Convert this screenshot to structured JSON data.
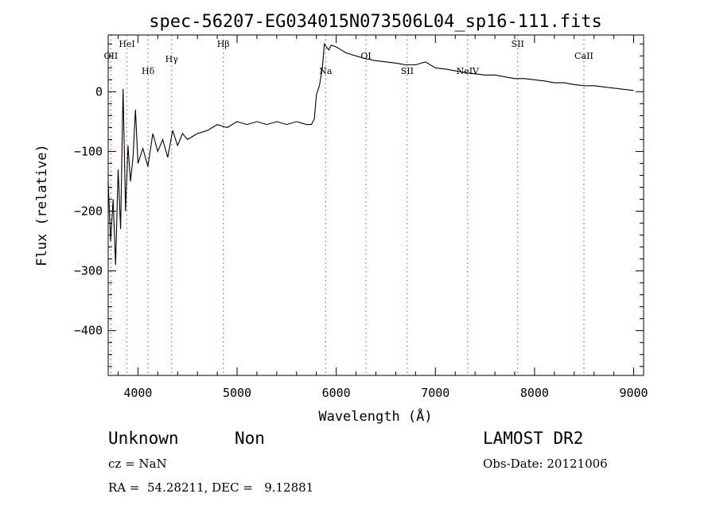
{
  "chart_data": {
    "type": "line",
    "title": "spec-56207-EG034015N073506L04_sp16-111.fits",
    "xlabel": "Wavelength (Å)",
    "ylabel": "Flux (relative)",
    "xlim": [
      3700,
      9100
    ],
    "ylim": [
      -475,
      95
    ],
    "x_ticks": [
      4000,
      5000,
      6000,
      7000,
      8000,
      9000
    ],
    "y_ticks": [
      0,
      -100,
      -200,
      -300,
      -400
    ],
    "grid": false,
    "series": [
      {
        "x": [
          3700,
          3725,
          3750,
          3775,
          3800,
          3825,
          3850,
          3875,
          3900,
          3925,
          3950,
          3975,
          4000,
          4050,
          4100,
          4150,
          4200,
          4250,
          4300,
          4350,
          4400,
          4450,
          4500,
          4600,
          4700,
          4800,
          4900,
          5000,
          5100,
          5200,
          5300,
          5400,
          5500,
          5600,
          5700,
          5750,
          5780,
          5800,
          5830,
          5860,
          5880,
          5900,
          5925,
          5950,
          6000,
          6050,
          6100,
          6200,
          6300,
          6400,
          6500,
          6600,
          6700,
          6800,
          6900,
          7000,
          7100,
          7200,
          7300,
          7400,
          7500,
          7600,
          7700,
          7800,
          7900,
          8000,
          8100,
          8200,
          8300,
          8400,
          8500,
          8600,
          8700,
          8800,
          8900,
          9000
        ],
        "y": [
          -150,
          -250,
          -180,
          -290,
          -130,
          -230,
          5,
          -200,
          -90,
          -150,
          -110,
          -30,
          -120,
          -95,
          -125,
          -70,
          -100,
          -80,
          -110,
          -65,
          -90,
          -70,
          -80,
          -70,
          -65,
          -55,
          -60,
          -50,
          -55,
          -50,
          -55,
          -50,
          -55,
          -50,
          -55,
          -55,
          -45,
          -5,
          10,
          40,
          80,
          75,
          70,
          78,
          75,
          70,
          65,
          60,
          55,
          52,
          50,
          48,
          45,
          45,
          50,
          40,
          38,
          35,
          32,
          30,
          28,
          28,
          25,
          22,
          22,
          20,
          18,
          15,
          15,
          12,
          10,
          10,
          8,
          6,
          4,
          2
        ]
      }
    ],
    "lines": [
      {
        "label": "OII",
        "x": 3727,
        "label_y": 55
      },
      {
        "label": "HeI",
        "x": 3889,
        "label_y": 75
      },
      {
        "label": "Hδ",
        "x": 4102,
        "label_y": 30
      },
      {
        "label": "Hγ",
        "x": 4340,
        "label_y": 50
      },
      {
        "label": "Hβ",
        "x": 4861,
        "label_y": 75
      },
      {
        "label": "Na",
        "x": 5893,
        "label_y": 30
      },
      {
        "label": "OI",
        "x": 6300,
        "label_y": 55
      },
      {
        "label": "SII",
        "x": 6716,
        "label_y": 30
      },
      {
        "label": "NeIV",
        "x": 7325,
        "label_y": 30
      },
      {
        "label": "SII",
        "x": 7830,
        "label_y": 75
      },
      {
        "label": "CaII",
        "x": 8498,
        "label_y": 55
      }
    ]
  },
  "info": {
    "class_label": "Unknown",
    "subclass_label": "Non",
    "survey": "LAMOST DR2",
    "cz": "cz = NaN",
    "obs_date": "Obs-Date: 20121006",
    "coords": "RA =  54.28211, DEC =   9.12881"
  }
}
